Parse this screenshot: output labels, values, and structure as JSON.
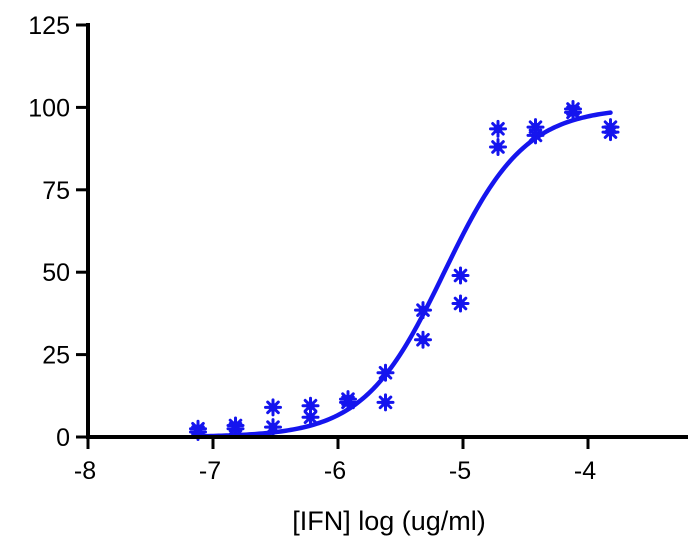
{
  "chart_data": {
    "type": "scatter",
    "title": "",
    "xlabel": "[IFN] log (ug/ml)",
    "ylabel": "",
    "xlim": [
      -8,
      -3.2
    ],
    "ylim": [
      0,
      125
    ],
    "x_ticks": [
      -8,
      -7,
      -6,
      -5,
      -4
    ],
    "x_tick_labels": [
      "-8",
      "-7",
      "-6",
      "-5",
      "-4"
    ],
    "y_ticks": [
      0,
      25,
      50,
      75,
      100,
      125
    ],
    "y_tick_labels": [
      "0",
      "25",
      "50",
      "75",
      "100",
      "125"
    ],
    "grid": false,
    "legend": "none",
    "color": "#1515ee",
    "series": [
      {
        "marker": "asterisk",
        "points": [
          {
            "x": -7.12,
            "y": 1.5
          },
          {
            "x": -7.12,
            "y": 2.5
          },
          {
            "x": -6.82,
            "y": 2.5
          },
          {
            "x": -6.82,
            "y": 3.5
          },
          {
            "x": -6.52,
            "y": 3.0
          },
          {
            "x": -6.52,
            "y": 9.0
          },
          {
            "x": -6.22,
            "y": 6.0
          },
          {
            "x": -6.22,
            "y": 9.5
          },
          {
            "x": -5.92,
            "y": 10.5
          },
          {
            "x": -5.92,
            "y": 11.5
          },
          {
            "x": -5.62,
            "y": 10.5
          },
          {
            "x": -5.62,
            "y": 19.5
          },
          {
            "x": -5.32,
            "y": 29.5
          },
          {
            "x": -5.32,
            "y": 38.5
          },
          {
            "x": -5.02,
            "y": 40.5
          },
          {
            "x": -5.02,
            "y": 49.0
          },
          {
            "x": -4.72,
            "y": 88.0
          },
          {
            "x": -4.72,
            "y": 93.5
          },
          {
            "x": -4.42,
            "y": 91.5
          },
          {
            "x": -4.42,
            "y": 94.0
          },
          {
            "x": -4.12,
            "y": 98.5
          },
          {
            "x": -4.12,
            "y": 99.5
          },
          {
            "x": -3.82,
            "y": 92.5
          },
          {
            "x": -3.82,
            "y": 94.0
          }
        ]
      },
      {
        "type": "line",
        "fit": {
          "model": "four-parameter-logistic",
          "bottom": 0,
          "top": 100,
          "log_ec50": -5.15,
          "hill_slope": 1.35
        },
        "x_range": [
          -7.12,
          -3.82
        ]
      }
    ]
  }
}
